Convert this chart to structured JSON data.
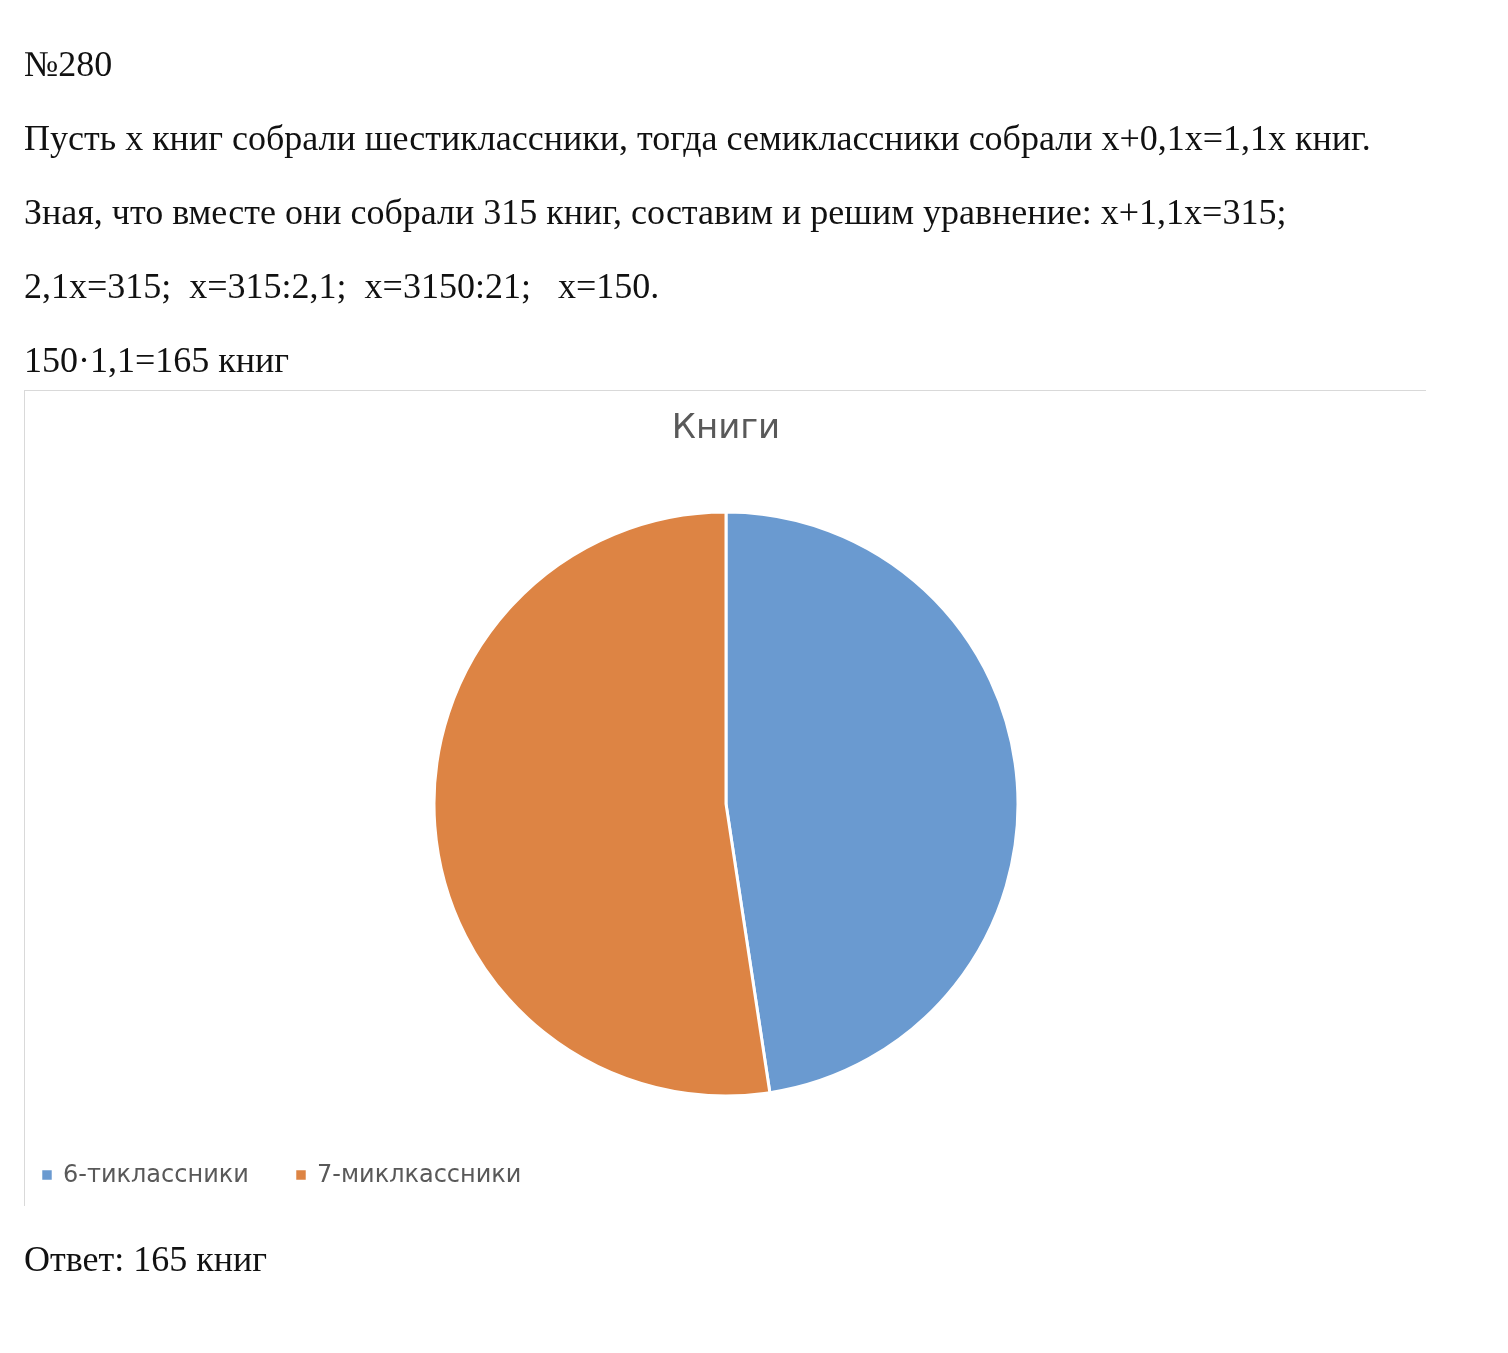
{
  "chart_data": {
    "type": "pie",
    "title": "Книги",
    "categories": [
      "6-тиклассники",
      "7-миклкассники"
    ],
    "values": [
      47.6,
      52.4
    ],
    "colors": [
      "#6a9ad0",
      "#dd8444"
    ],
    "legend": "bottom",
    "annotations": [
      "№280",
      "Пусть x книг собрали шестиклассники, тогда семиклассники собрали x+0,1x=1,1x книг.",
      "Зная, что вместе они собрали 315 книг, составим и решим уравнение: x+1,1x=315;",
      "2,1x=315;  x=315:2,1;  x=3150:21;   x=150.",
      "150·1,1=165 книг",
      "Ответ: 165 книг"
    ]
  }
}
